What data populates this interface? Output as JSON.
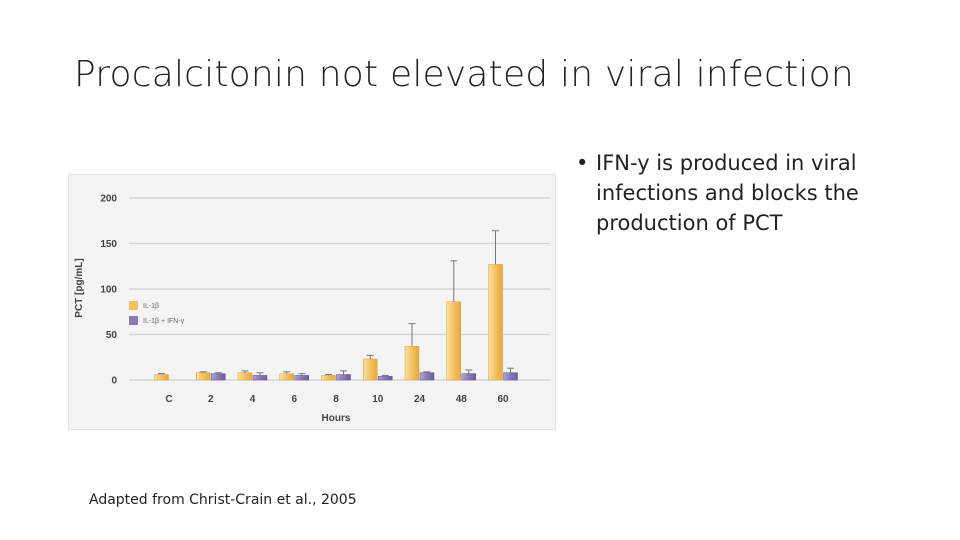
{
  "slide": {
    "title": "Procalcitonin not elevated in viral infection",
    "bullets": [
      {
        "marker": "•",
        "text": "IFN-y is produced in viral infections and blocks the production of PCT"
      }
    ],
    "caption": "Adapted from Christ-Crain et al., 2005"
  },
  "chart_data": {
    "type": "bar",
    "title": "",
    "xlabel": "Hours",
    "ylabel": "PCT [pg/mL]",
    "ylim": [
      0,
      200
    ],
    "yticks": [
      0,
      50,
      100,
      150,
      200
    ],
    "categories": [
      "C",
      "2",
      "4",
      "6",
      "8",
      "10",
      "24",
      "48",
      "60"
    ],
    "series": [
      {
        "name": "IL-1β",
        "color": "#f5c060",
        "values": [
          6,
          8,
          8,
          7,
          5,
          23,
          37,
          86,
          127
        ],
        "errors": [
          1,
          1,
          2,
          2,
          1,
          4,
          25,
          45,
          37
        ]
      },
      {
        "name": "IL-1β + IFN-γ",
        "color": "#8a7bb8",
        "values": [
          0,
          7,
          5,
          5,
          6,
          4,
          8,
          7,
          8
        ],
        "errors": [
          0,
          1,
          3,
          2,
          4,
          1,
          1,
          4,
          5
        ]
      }
    ],
    "grid": true,
    "legend_position": "left"
  }
}
